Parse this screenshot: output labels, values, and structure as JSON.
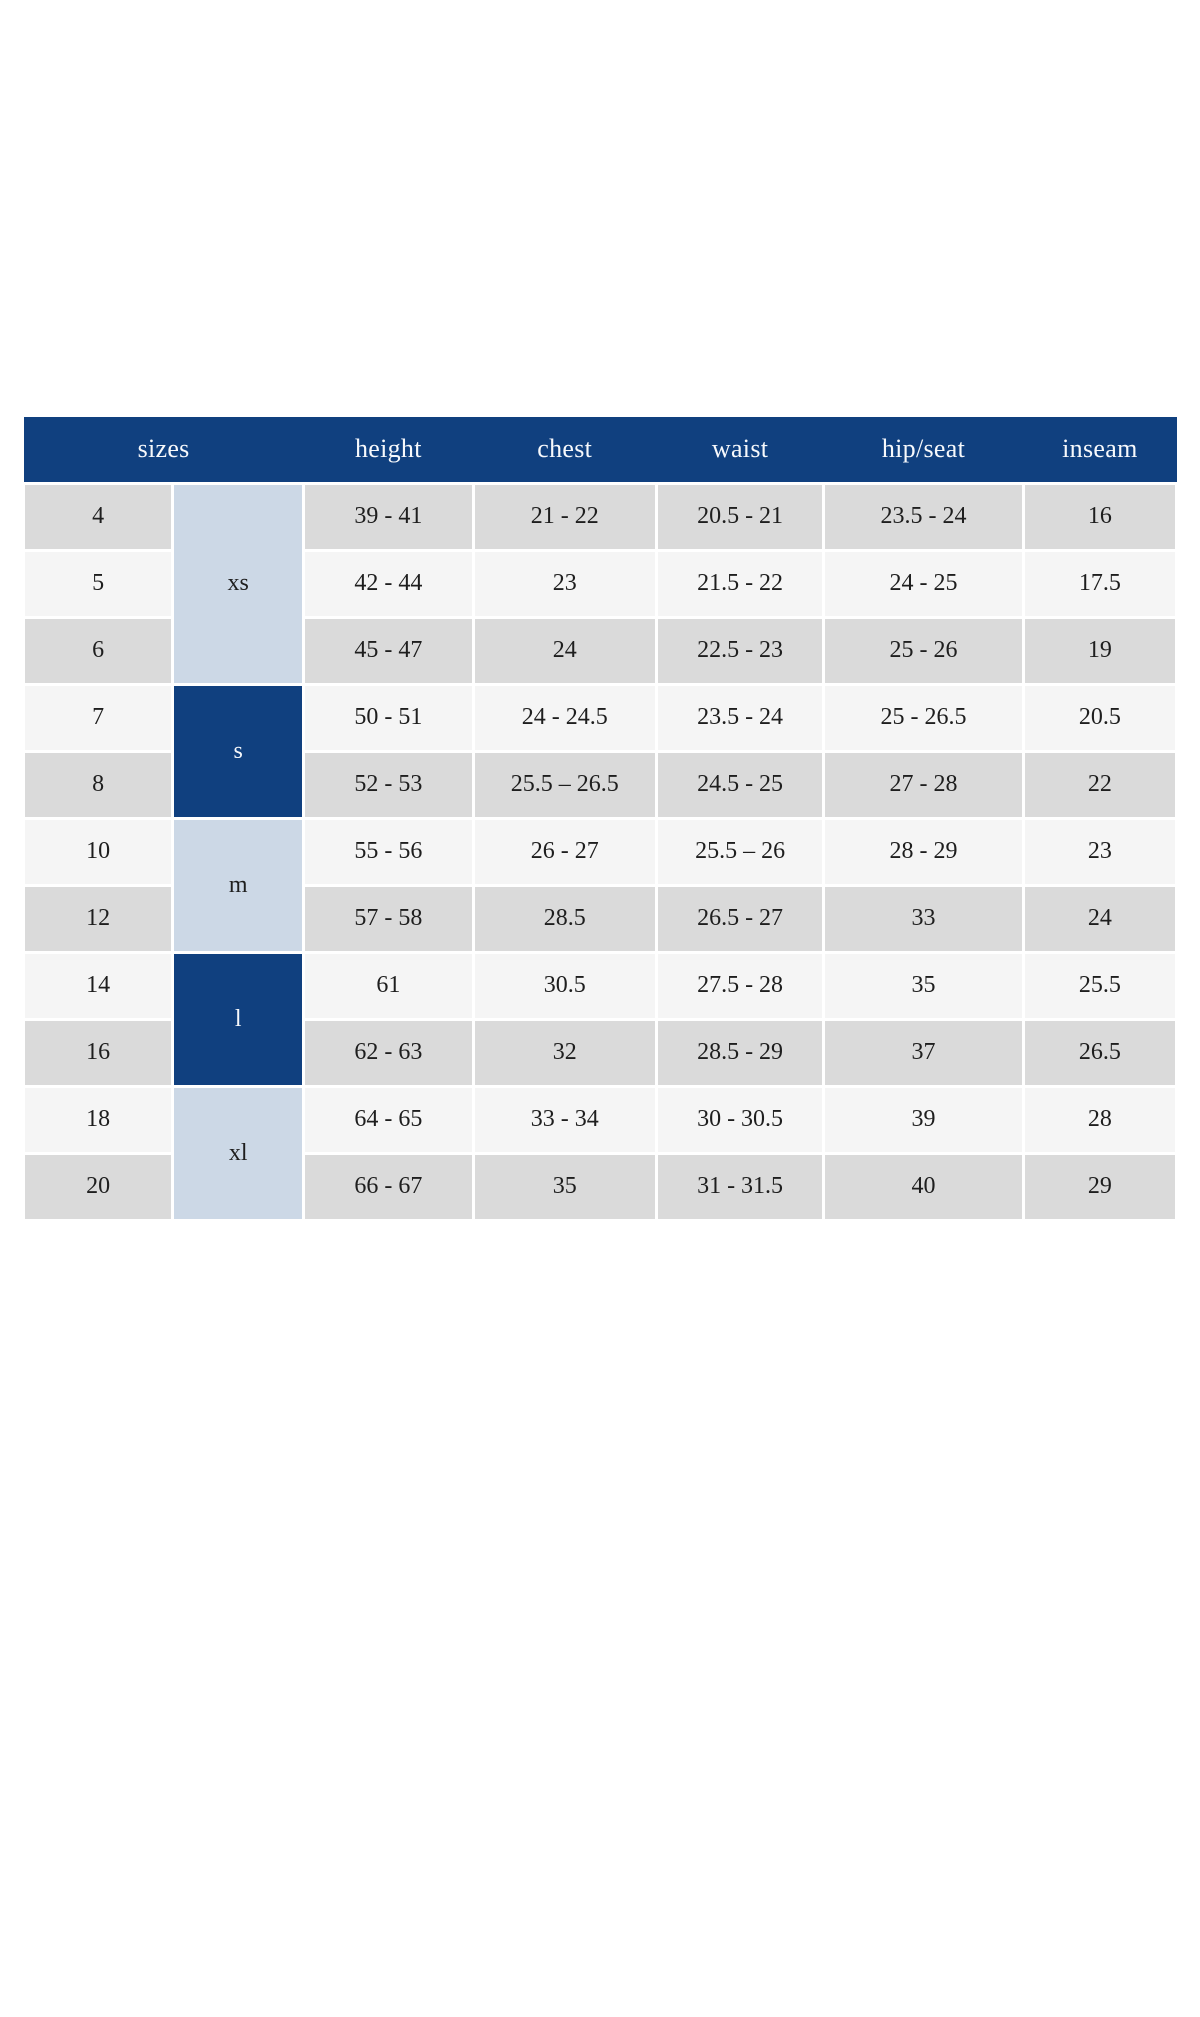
{
  "page": {
    "background": "#ffffff"
  },
  "size_chart": {
    "columns": [
      "sizes",
      "height",
      "chest",
      "waist",
      "hip/seat",
      "inseam"
    ],
    "colors": {
      "header_bg": "#10407f",
      "header_text": "#f7f9fc",
      "group_light_bg": "#ccd8e6",
      "group_dark_bg": "#10407f",
      "group_dark_text": "#f7f9fc",
      "row_gray": "#dadada",
      "row_light": "#f5f5f5",
      "cell_text": "#1e1e1e",
      "divider": "#ffffff"
    },
    "groups": [
      {
        "label": "xs",
        "rowspan": 3,
        "style": "light"
      },
      {
        "label": "s",
        "rowspan": 2,
        "style": "dark"
      },
      {
        "label": "m",
        "rowspan": 2,
        "style": "light"
      },
      {
        "label": "l",
        "rowspan": 2,
        "style": "dark"
      },
      {
        "label": "xl",
        "rowspan": 2,
        "style": "light"
      }
    ],
    "rows": [
      {
        "size": "4",
        "group": "xs",
        "height": "39 - 41",
        "chest": "21 - 22",
        "waist": "20.5 - 21",
        "hip_seat": "23.5 - 24",
        "inseam": "16"
      },
      {
        "size": "5",
        "group": "xs",
        "height": "42 - 44",
        "chest": "23",
        "waist": "21.5 - 22",
        "hip_seat": "24 - 25",
        "inseam": "17.5"
      },
      {
        "size": "6",
        "group": "xs",
        "height": "45 - 47",
        "chest": "24",
        "waist": "22.5 - 23",
        "hip_seat": "25 - 26",
        "inseam": "19"
      },
      {
        "size": "7",
        "group": "s",
        "height": "50 - 51",
        "chest": "24 - 24.5",
        "waist": "23.5 - 24",
        "hip_seat": "25 - 26.5",
        "inseam": "20.5"
      },
      {
        "size": "8",
        "group": "s",
        "height": "52 - 53",
        "chest": "25.5 – 26.5",
        "waist": "24.5 - 25",
        "hip_seat": "27 - 28",
        "inseam": "22"
      },
      {
        "size": "10",
        "group": "m",
        "height": "55 - 56",
        "chest": "26 - 27",
        "waist": "25.5 – 26",
        "hip_seat": "28 - 29",
        "inseam": "23"
      },
      {
        "size": "12",
        "group": "m",
        "height": "57 - 58",
        "chest": "28.5",
        "waist": "26.5 - 27",
        "hip_seat": "33",
        "inseam": "24"
      },
      {
        "size": "14",
        "group": "l",
        "height": "61",
        "chest": "30.5",
        "waist": "27.5 - 28",
        "hip_seat": "35",
        "inseam": "25.5"
      },
      {
        "size": "16",
        "group": "l",
        "height": "62 - 63",
        "chest": "32",
        "waist": "28.5 - 29",
        "hip_seat": "37",
        "inseam": "26.5"
      },
      {
        "size": "18",
        "group": "xl",
        "height": "64 - 65",
        "chest": "33 - 34",
        "waist": "30 - 30.5",
        "hip_seat": "39",
        "inseam": "28"
      },
      {
        "size": "20",
        "group": "xl",
        "height": "66 - 67",
        "chest": "35",
        "waist": "31 - 31.5",
        "hip_seat": "40",
        "inseam": "29"
      }
    ]
  }
}
